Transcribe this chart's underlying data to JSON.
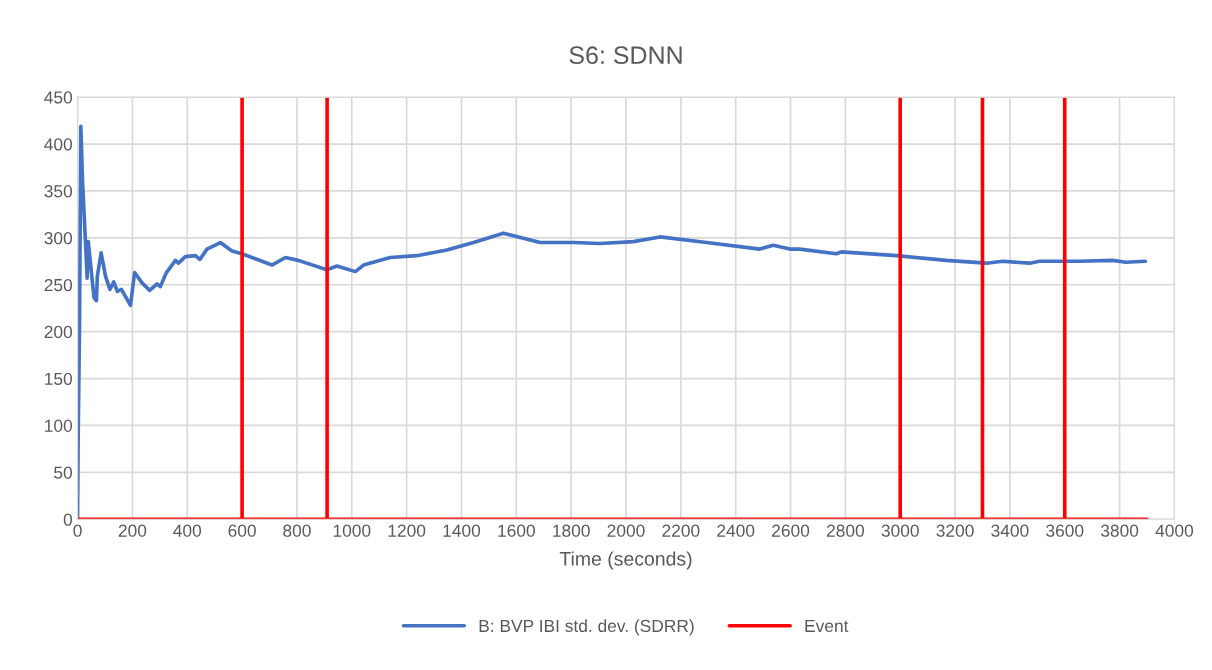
{
  "chart_data": {
    "type": "line",
    "title": "S6: SDNN",
    "xlabel": "Time (seconds)",
    "xlim": [
      0,
      4000
    ],
    "xticks": [
      0,
      200,
      400,
      600,
      800,
      1000,
      1200,
      1400,
      1600,
      1800,
      2000,
      2200,
      2400,
      2600,
      2800,
      3000,
      3200,
      3400,
      3600,
      3800,
      4000
    ],
    "ylim": [
      0,
      450
    ],
    "yticks": [
      0,
      50,
      100,
      150,
      200,
      250,
      300,
      350,
      400,
      450
    ],
    "grid": true,
    "legend": "bottom",
    "marker": "none",
    "line_style": "solid",
    "series": [
      {
        "name": "B: BVP IBI std. dev. (SDRR)",
        "color": "#4472c4",
        "x": [
          0,
          2,
          7,
          12,
          18,
          35,
          39,
          60,
          69,
          72,
          86,
          102,
          118,
          132,
          145,
          160,
          193,
          208,
          235,
          263,
          290,
          302,
          324,
          357,
          368,
          393,
          430,
          446,
          472,
          521,
          563,
          600,
          709,
          758,
          805,
          909,
          946,
          1013,
          1043,
          1140,
          1237,
          1347,
          1444,
          1553,
          1687,
          1809,
          1905,
          2027,
          2124,
          2294,
          2488,
          2537,
          2597,
          2634,
          2767,
          2785,
          2986,
          3168,
          3314,
          3374,
          3472,
          3508,
          3654,
          3775,
          3824,
          3894
        ],
        "values": [
          0,
          82,
          202,
          419,
          362,
          257,
          296,
          236,
          233,
          259,
          284,
          259,
          245,
          253,
          243,
          245,
          228,
          263,
          252,
          244,
          251,
          248,
          263,
          276,
          273,
          280,
          281,
          277,
          288,
          295,
          286,
          283,
          271,
          279,
          276,
          266,
          270,
          264,
          271,
          279,
          281,
          287,
          295,
          305,
          295,
          295,
          294,
          296,
          301,
          295,
          288,
          292,
          288,
          288,
          283,
          285,
          281,
          276,
          273,
          275,
          273,
          275,
          275,
          276,
          274,
          275
        ]
      },
      {
        "name": "Event",
        "color": "#ff0000",
        "x": [
          0,
          600,
          600,
          600,
          910,
          910,
          910,
          3000,
          3000,
          3000,
          3300,
          3300,
          3300,
          3600,
          3600,
          3600,
          3900
        ],
        "values": [
          0,
          0,
          450,
          0,
          0,
          450,
          0,
          0,
          450,
          0,
          0,
          450,
          0,
          0,
          450,
          0,
          0
        ]
      }
    ]
  }
}
